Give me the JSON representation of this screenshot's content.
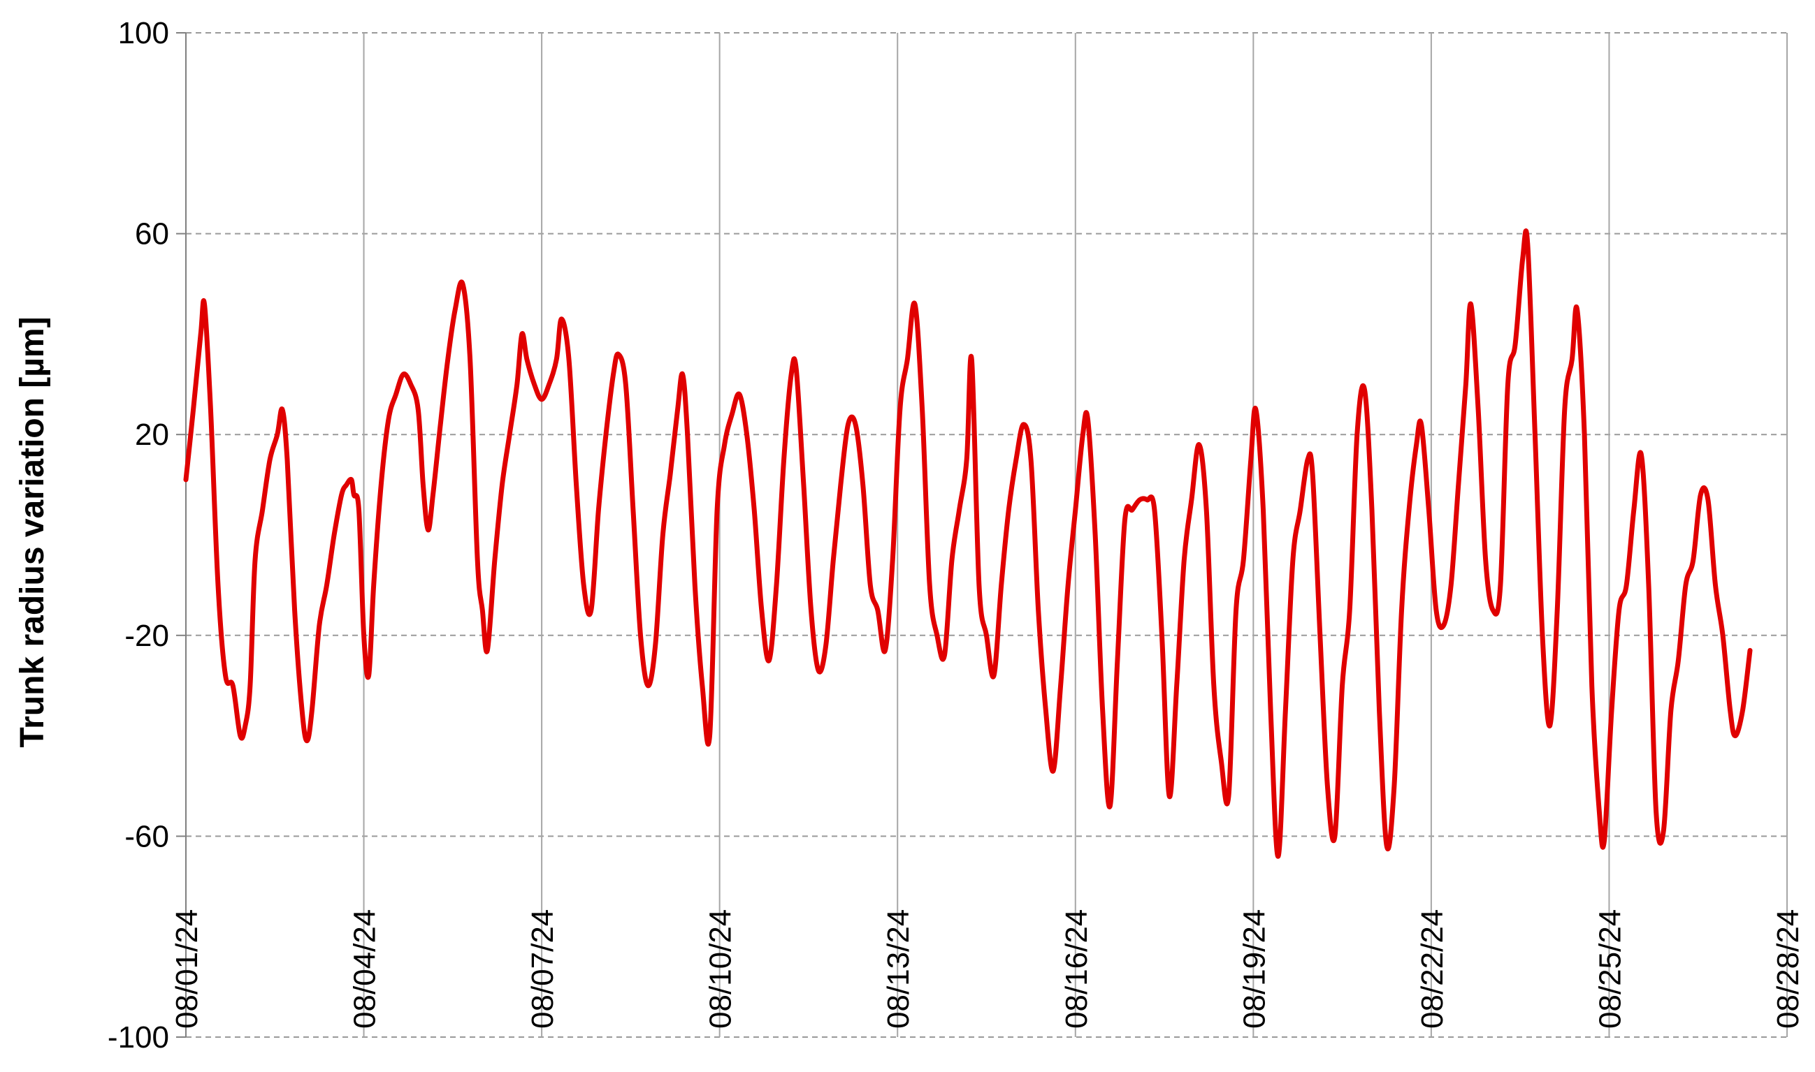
{
  "chart_data": {
    "type": "line",
    "title": "",
    "xlabel": "",
    "ylabel": "Trunk radius variation [µm]",
    "ylim": [
      -100,
      100
    ],
    "xlim": [
      "2024-08-01",
      "2024-08-28"
    ],
    "y_ticks": [
      "100",
      "60",
      "20",
      "-20",
      "-60",
      "-100"
    ],
    "y_tick_values": [
      100,
      60,
      20,
      -20,
      -60,
      -100
    ],
    "x_ticks": [
      "08/01/24",
      "08/04/24",
      "08/07/24",
      "08/10/24",
      "08/13/24",
      "08/16/24",
      "08/19/24",
      "08/22/24",
      "08/25/24",
      "08/28/24"
    ],
    "x_tick_dates": [
      "2024-08-01",
      "2024-08-04",
      "2024-08-07",
      "2024-08-10",
      "2024-08-13",
      "2024-08-16",
      "2024-08-19",
      "2024-08-22",
      "2024-08-25",
      "2024-08-28"
    ],
    "grid": true,
    "legend": "none",
    "series": [
      {
        "color": "#e00000",
        "points": [
          [
            "2024-08-01T00:00",
            11
          ],
          [
            "2024-08-01T03:00",
            25
          ],
          [
            "2024-08-01T06:00",
            40
          ],
          [
            "2024-08-01T07:30",
            46
          ],
          [
            "2024-08-01T10:00",
            25
          ],
          [
            "2024-08-01T13:00",
            -10
          ],
          [
            "2024-08-01T16:00",
            -28
          ],
          [
            "2024-08-01T19:00",
            -30
          ],
          [
            "2024-08-01T22:00",
            -40
          ],
          [
            "2024-08-02T00:00",
            -38
          ],
          [
            "2024-08-02T02:00",
            -30
          ],
          [
            "2024-08-02T04:00",
            -5
          ],
          [
            "2024-08-02T07:00",
            5
          ],
          [
            "2024-08-02T10:00",
            15
          ],
          [
            "2024-08-02T13:00",
            20
          ],
          [
            "2024-08-02T15:00",
            25
          ],
          [
            "2024-08-02T17:00",
            15
          ],
          [
            "2024-08-02T20:00",
            -15
          ],
          [
            "2024-08-02T23:00",
            -35
          ],
          [
            "2024-08-03T01:00",
            -41
          ],
          [
            "2024-08-03T03:00",
            -35
          ],
          [
            "2024-08-03T06:00",
            -18
          ],
          [
            "2024-08-03T09:00",
            -10
          ],
          [
            "2024-08-03T12:00",
            0
          ],
          [
            "2024-08-03T15:00",
            8
          ],
          [
            "2024-08-03T17:00",
            10
          ],
          [
            "2024-08-03T19:00",
            11
          ],
          [
            "2024-08-03T20:00",
            8
          ],
          [
            "2024-08-03T22:00",
            5
          ],
          [
            "2024-08-04T00:00",
            -20
          ],
          [
            "2024-08-04T02:00",
            -28
          ],
          [
            "2024-08-04T04:00",
            -10
          ],
          [
            "2024-08-04T07:00",
            10
          ],
          [
            "2024-08-04T10:00",
            23
          ],
          [
            "2024-08-04T13:00",
            28
          ],
          [
            "2024-08-04T16:00",
            32
          ],
          [
            "2024-08-04T19:00",
            30
          ],
          [
            "2024-08-04T22:00",
            25
          ],
          [
            "2024-08-05T00:00",
            10
          ],
          [
            "2024-08-05T02:00",
            1
          ],
          [
            "2024-08-05T04:00",
            8
          ],
          [
            "2024-08-05T07:00",
            22
          ],
          [
            "2024-08-05T10:00",
            35
          ],
          [
            "2024-08-05T13:00",
            45
          ],
          [
            "2024-08-05T16:00",
            50
          ],
          [
            "2024-08-05T19:00",
            35
          ],
          [
            "2024-08-05T22:00",
            -5
          ],
          [
            "2024-08-06T00:00",
            -15
          ],
          [
            "2024-08-06T02:00",
            -23
          ],
          [
            "2024-08-06T05:00",
            -5
          ],
          [
            "2024-08-06T08:00",
            10
          ],
          [
            "2024-08-06T11:00",
            20
          ],
          [
            "2024-08-06T14:00",
            30
          ],
          [
            "2024-08-06T16:00",
            40
          ],
          [
            "2024-08-06T18:00",
            35
          ],
          [
            "2024-08-06T21:00",
            30
          ],
          [
            "2024-08-07T00:00",
            27
          ],
          [
            "2024-08-07T03:00",
            30
          ],
          [
            "2024-08-07T06:00",
            35
          ],
          [
            "2024-08-07T08:00",
            43
          ],
          [
            "2024-08-07T11:00",
            35
          ],
          [
            "2024-08-07T14:00",
            10
          ],
          [
            "2024-08-07T17:00",
            -10
          ],
          [
            "2024-08-07T20:00",
            -15
          ],
          [
            "2024-08-07T23:00",
            5
          ],
          [
            "2024-08-08T02:00",
            20
          ],
          [
            "2024-08-08T05:00",
            32
          ],
          [
            "2024-08-08T07:00",
            36
          ],
          [
            "2024-08-08T10:00",
            30
          ],
          [
            "2024-08-08T13:00",
            5
          ],
          [
            "2024-08-08T16:00",
            -20
          ],
          [
            "2024-08-08T19:00",
            -30
          ],
          [
            "2024-08-08T22:00",
            -22
          ],
          [
            "2024-08-09T01:00",
            0
          ],
          [
            "2024-08-09T04:00",
            12
          ],
          [
            "2024-08-09T07:00",
            25
          ],
          [
            "2024-08-09T09:00",
            32
          ],
          [
            "2024-08-09T11:00",
            20
          ],
          [
            "2024-08-09T14:00",
            -10
          ],
          [
            "2024-08-09T17:00",
            -30
          ],
          [
            "2024-08-09T20:00",
            -40
          ],
          [
            "2024-08-09T23:00",
            5
          ],
          [
            "2024-08-10T02:00",
            18
          ],
          [
            "2024-08-10T05:00",
            24
          ],
          [
            "2024-08-10T08:00",
            28
          ],
          [
            "2024-08-10T11:00",
            20
          ],
          [
            "2024-08-10T14:00",
            5
          ],
          [
            "2024-08-10T17:00",
            -15
          ],
          [
            "2024-08-10T20:00",
            -25
          ],
          [
            "2024-08-10T23:00",
            -10
          ],
          [
            "2024-08-11T02:00",
            15
          ],
          [
            "2024-08-11T05:00",
            32
          ],
          [
            "2024-08-11T07:00",
            33
          ],
          [
            "2024-08-11T10:00",
            10
          ],
          [
            "2024-08-11T13:00",
            -15
          ],
          [
            "2024-08-11T16:00",
            -27
          ],
          [
            "2024-08-11T19:00",
            -22
          ],
          [
            "2024-08-11T22:00",
            -5
          ],
          [
            "2024-08-12T01:00",
            10
          ],
          [
            "2024-08-12T04:00",
            22
          ],
          [
            "2024-08-12T07:00",
            22
          ],
          [
            "2024-08-12T10:00",
            10
          ],
          [
            "2024-08-12T13:00",
            -10
          ],
          [
            "2024-08-12T16:00",
            -15
          ],
          [
            "2024-08-12T19:00",
            -23
          ],
          [
            "2024-08-12T22:00",
            -5
          ],
          [
            "2024-08-13T01:00",
            25
          ],
          [
            "2024-08-13T04:00",
            35
          ],
          [
            "2024-08-13T07:00",
            46
          ],
          [
            "2024-08-13T10:00",
            25
          ],
          [
            "2024-08-13T13:00",
            -10
          ],
          [
            "2024-08-13T16:00",
            -20
          ],
          [
            "2024-08-13T19:00",
            -24
          ],
          [
            "2024-08-13T22:00",
            -5
          ],
          [
            "2024-08-14T01:00",
            5
          ],
          [
            "2024-08-14T04:00",
            15
          ],
          [
            "2024-08-14T06:00",
            35
          ],
          [
            "2024-08-14T09:00",
            -10
          ],
          [
            "2024-08-14T12:00",
            -20
          ],
          [
            "2024-08-14T15:00",
            -28
          ],
          [
            "2024-08-14T18:00",
            -10
          ],
          [
            "2024-08-14T21:00",
            5
          ],
          [
            "2024-08-15T00:00",
            15
          ],
          [
            "2024-08-15T03:00",
            22
          ],
          [
            "2024-08-15T06:00",
            15
          ],
          [
            "2024-08-15T09:00",
            -15
          ],
          [
            "2024-08-15T12:00",
            -35
          ],
          [
            "2024-08-15T15:00",
            -47
          ],
          [
            "2024-08-15T18:00",
            -30
          ],
          [
            "2024-08-15T21:00",
            -10
          ],
          [
            "2024-08-16T00:00",
            5
          ],
          [
            "2024-08-16T03:00",
            20
          ],
          [
            "2024-08-16T05:00",
            23
          ],
          [
            "2024-08-16T08:00",
            0
          ],
          [
            "2024-08-16T11:00",
            -35
          ],
          [
            "2024-08-16T14:00",
            -54
          ],
          [
            "2024-08-16T17:00",
            -25
          ],
          [
            "2024-08-16T20:00",
            3
          ],
          [
            "2024-08-16T23:00",
            5
          ],
          [
            "2024-08-17T02:00",
            7
          ],
          [
            "2024-08-17T05:00",
            7
          ],
          [
            "2024-08-17T08:00",
            5
          ],
          [
            "2024-08-17T11:00",
            -20
          ],
          [
            "2024-08-17T14:00",
            -52
          ],
          [
            "2024-08-17T17:00",
            -30
          ],
          [
            "2024-08-17T20:00",
            -5
          ],
          [
            "2024-08-17T23:00",
            7
          ],
          [
            "2024-08-18T02:00",
            18
          ],
          [
            "2024-08-18T05:00",
            5
          ],
          [
            "2024-08-18T08:00",
            -30
          ],
          [
            "2024-08-18T11:00",
            -45
          ],
          [
            "2024-08-18T14:00",
            -52
          ],
          [
            "2024-08-18T17:00",
            -15
          ],
          [
            "2024-08-18T20:00",
            -5
          ],
          [
            "2024-08-18T23:00",
            15
          ],
          [
            "2024-08-19T01:00",
            25
          ],
          [
            "2024-08-19T04:00",
            5
          ],
          [
            "2024-08-19T07:00",
            -35
          ],
          [
            "2024-08-19T10:00",
            -64
          ],
          [
            "2024-08-19T13:00",
            -35
          ],
          [
            "2024-08-19T16:00",
            -5
          ],
          [
            "2024-08-19T19:00",
            5
          ],
          [
            "2024-08-19T22:00",
            15
          ],
          [
            "2024-08-20T00:00",
            12
          ],
          [
            "2024-08-20T03:00",
            -20
          ],
          [
            "2024-08-20T06:00",
            -50
          ],
          [
            "2024-08-20T09:00",
            -60
          ],
          [
            "2024-08-20T12:00",
            -30
          ],
          [
            "2024-08-20T15:00",
            -15
          ],
          [
            "2024-08-20T18:00",
            20
          ],
          [
            "2024-08-20T21:00",
            29
          ],
          [
            "2024-08-21T00:00",
            5
          ],
          [
            "2024-08-21T03:00",
            -35
          ],
          [
            "2024-08-21T06:00",
            -62
          ],
          [
            "2024-08-21T09:00",
            -50
          ],
          [
            "2024-08-21T12:00",
            -15
          ],
          [
            "2024-08-21T15:00",
            5
          ],
          [
            "2024-08-21T18:00",
            18
          ],
          [
            "2024-08-21T20:00",
            22
          ],
          [
            "2024-08-21T23:00",
            5
          ],
          [
            "2024-08-22T02:00",
            -15
          ],
          [
            "2024-08-22T05:00",
            -18
          ],
          [
            "2024-08-22T08:00",
            -10
          ],
          [
            "2024-08-22T11:00",
            10
          ],
          [
            "2024-08-22T14:00",
            30
          ],
          [
            "2024-08-22T16:00",
            46
          ],
          [
            "2024-08-22T19:00",
            25
          ],
          [
            "2024-08-22T22:00",
            -5
          ],
          [
            "2024-08-23T01:00",
            -15
          ],
          [
            "2024-08-23T04:00",
            -10
          ],
          [
            "2024-08-23T07:00",
            30
          ],
          [
            "2024-08-23T10:00",
            38
          ],
          [
            "2024-08-23T13:00",
            55
          ],
          [
            "2024-08-23T15:00",
            58
          ],
          [
            "2024-08-23T18:00",
            20
          ],
          [
            "2024-08-23T21:00",
            -20
          ],
          [
            "2024-08-24T00:00",
            -38
          ],
          [
            "2024-08-24T03:00",
            -15
          ],
          [
            "2024-08-24T06:00",
            25
          ],
          [
            "2024-08-24T09:00",
            35
          ],
          [
            "2024-08-24T11:00",
            45
          ],
          [
            "2024-08-24T14:00",
            20
          ],
          [
            "2024-08-24T17:00",
            -30
          ],
          [
            "2024-08-24T20:00",
            -55
          ],
          [
            "2024-08-24T22:00",
            -61
          ],
          [
            "2024-08-25T01:00",
            -35
          ],
          [
            "2024-08-25T04:00",
            -15
          ],
          [
            "2024-08-25T07:00",
            -10
          ],
          [
            "2024-08-25T10:00",
            5
          ],
          [
            "2024-08-25T13:00",
            16
          ],
          [
            "2024-08-25T16:00",
            -10
          ],
          [
            "2024-08-25T19:00",
            -55
          ],
          [
            "2024-08-25T22:00",
            -59
          ],
          [
            "2024-08-26T01:00",
            -35
          ],
          [
            "2024-08-26T04:00",
            -25
          ],
          [
            "2024-08-26T07:00",
            -10
          ],
          [
            "2024-08-26T10:00",
            -5
          ],
          [
            "2024-08-26T13:00",
            8
          ],
          [
            "2024-08-26T16:00",
            7
          ],
          [
            "2024-08-26T19:00",
            -10
          ],
          [
            "2024-08-26T22:00",
            -20
          ],
          [
            "2024-08-27T01:00",
            -35
          ],
          [
            "2024-08-27T03:00",
            -40
          ],
          [
            "2024-08-27T06:00",
            -35
          ],
          [
            "2024-08-27T09:00",
            -23
          ]
        ]
      }
    ]
  }
}
